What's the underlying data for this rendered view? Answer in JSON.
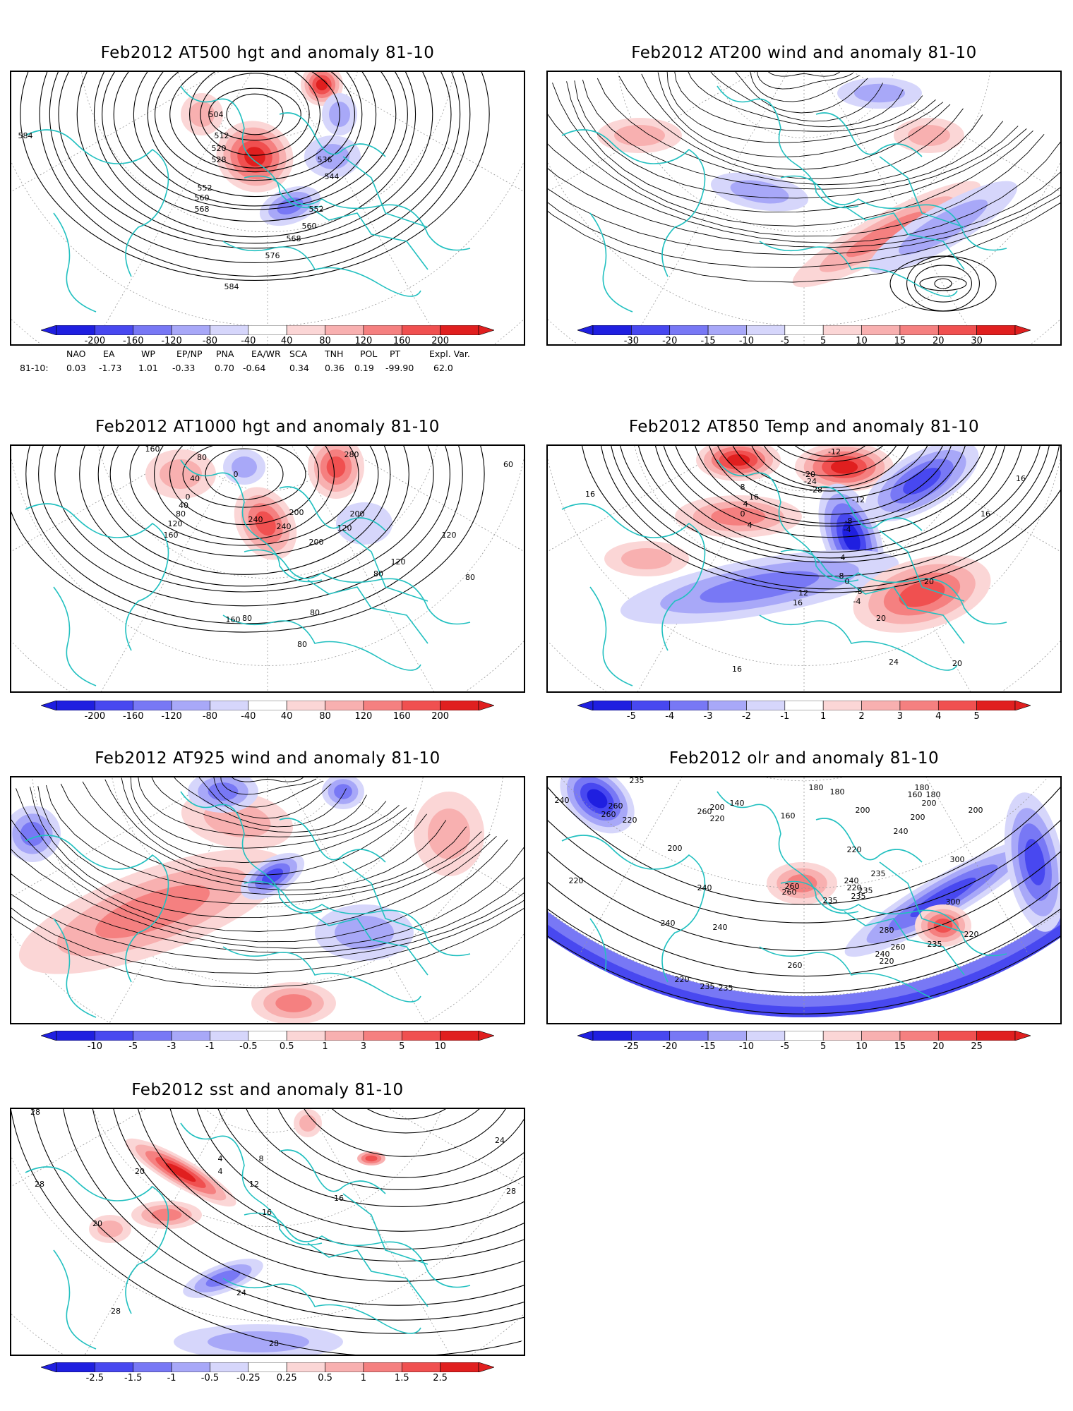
{
  "panels": [
    {
      "id": "p500",
      "title": "Feb2012 AT500 hgt and anomaly 81-10",
      "contour_labels": [
        "584",
        "504",
        "512",
        "520",
        "528",
        "536",
        "544",
        "552",
        "560",
        "568",
        "552",
        "560",
        "568",
        "576",
        "584"
      ],
      "colorbar": [
        "-200",
        "-160",
        "-120",
        "-80",
        "-40",
        "40",
        "80",
        "120",
        "160",
        "200"
      ]
    },
    {
      "id": "p200",
      "title": "Feb2012 AT200 wind and anomaly 81-10",
      "contour_labels": [],
      "colorbar": [
        "-30",
        "-20",
        "-15",
        "-10",
        "-5",
        "5",
        "10",
        "15",
        "20",
        "30"
      ]
    },
    {
      "id": "p1000",
      "title": "Feb2012 AT1000 hgt and anomaly 81-10",
      "contour_labels": [
        "160",
        "80",
        "40",
        "0",
        "40",
        "80",
        "120",
        "160",
        "200",
        "160",
        "240",
        "200",
        "120",
        "120",
        "80",
        "80",
        "80",
        "240",
        "280",
        "200",
        "120",
        "80",
        "0",
        "80",
        "60"
      ],
      "colorbar": [
        "-200",
        "-160",
        "-120",
        "-80",
        "-40",
        "40",
        "80",
        "120",
        "160",
        "200"
      ]
    },
    {
      "id": "p850",
      "title": "Feb2012 AT850 Temp and anomaly 81-10",
      "contour_labels": [
        "16",
        "8",
        "4",
        "0",
        "4",
        "-8",
        "-4",
        "16",
        "-20",
        "-24",
        "-28",
        "-12",
        "-12",
        "-8",
        "-4",
        "0",
        "4",
        "8",
        "12",
        "16",
        "20",
        "16",
        "24",
        "20",
        "20",
        "16",
        "16"
      ],
      "colorbar": [
        "-5",
        "-4",
        "-3",
        "-2",
        "-1",
        "1",
        "2",
        "3",
        "4",
        "5"
      ]
    },
    {
      "id": "p925",
      "title": "Feb2012 AT925 wind and anomaly 81-10",
      "contour_labels": [],
      "colorbar": [
        "-10",
        "-5",
        "-3",
        "-1",
        "-0.5",
        "0.5",
        "1",
        "3",
        "5",
        "10"
      ]
    },
    {
      "id": "polr",
      "title": "Feb2012 olr and anomaly 81-10",
      "contour_labels": [
        "235",
        "240",
        "260",
        "260",
        "220",
        "200",
        "220",
        "260",
        "200",
        "140",
        "160",
        "180",
        "180",
        "200",
        "220",
        "240",
        "200",
        "180",
        "200",
        "200",
        "180",
        "160",
        "220",
        "240",
        "235",
        "260",
        "260",
        "240",
        "220",
        "235",
        "235",
        "235",
        "300",
        "300",
        "280",
        "260",
        "240",
        "220",
        "240",
        "240",
        "235",
        "235",
        "220",
        "260",
        "235",
        "220"
      ],
      "colorbar": [
        "-25",
        "-20",
        "-15",
        "-10",
        "-5",
        "5",
        "10",
        "15",
        "20",
        "25"
      ]
    },
    {
      "id": "psst",
      "title": "Feb2012 sst and anomaly 81-10",
      "contour_labels": [
        "28",
        "28",
        "20",
        "4",
        "8",
        "4",
        "12",
        "16",
        "16",
        "20",
        "24",
        "28",
        "28",
        "24",
        "28"
      ],
      "colorbar": [
        "-2.5",
        "-1.5",
        "-1",
        "-0.5",
        "-0.25",
        "0.25",
        "0.5",
        "1",
        "1.5",
        "2.5"
      ]
    }
  ],
  "teleconnections": {
    "headers": [
      "NAO",
      "EA",
      "WP",
      "EP/NP",
      "PNA",
      "EA/WR",
      "SCA",
      "TNH",
      "POL",
      "PT",
      "Expl. Var."
    ],
    "row_label": "81-10:",
    "values": [
      "0.03",
      "-1.73",
      "1.01",
      "-0.33",
      "0.70",
      "-0.64",
      "0.34",
      "0.36",
      "0.19",
      "-99.90",
      "62.0"
    ]
  },
  "colors": {
    "coast": "#22c0c0",
    "neg": [
      "#1f1fe0",
      "#4848f0",
      "#7878f5",
      "#a8a8f8",
      "#d6d6fb"
    ],
    "pos": [
      "#fbd6d6",
      "#f8b0b0",
      "#f58080",
      "#f05050",
      "#e01f1f"
    ],
    "contour": "#000000"
  }
}
